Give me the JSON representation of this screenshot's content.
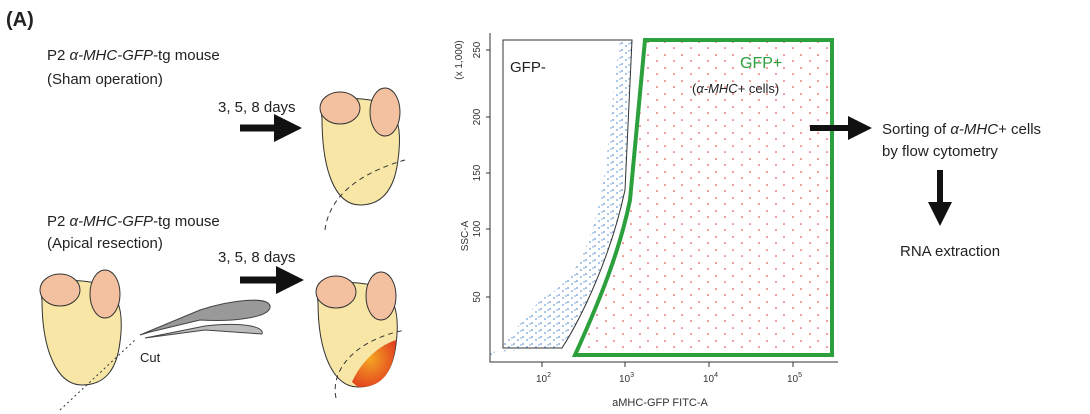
{
  "panel_label": "(A)",
  "sham": {
    "line1": [
      "P2 ",
      "α-MHC-GFP",
      "-tg mouse"
    ],
    "line2": "(Sham operation)",
    "duration": "3, 5, 8 days"
  },
  "resection": {
    "line1": [
      "P2 ",
      "α-MHC-GFP",
      "-tg mouse"
    ],
    "line2": "(Apical resection)",
    "duration": "3, 5, 8 days",
    "cut": "Cut"
  },
  "flow_plot": {
    "y_axis_label": "SSC-A",
    "y_scale_note": "(x 1,000)",
    "y_ticks": [
      "250",
      "200",
      "150",
      "100",
      "50"
    ],
    "x_axis_label": "aMHC-GFP FITC-A",
    "x_ticks": [
      {
        "base": "10",
        "exp": "2"
      },
      {
        "base": "10",
        "exp": "3"
      },
      {
        "base": "10",
        "exp": "4"
      },
      {
        "base": "10",
        "exp": "5"
      }
    ],
    "gate_negative": "GFP-",
    "gate_positive": "GFP+",
    "gate_positive_note": [
      "(",
      "α-MHC",
      "+ cells)"
    ]
  },
  "steps": {
    "sorting": [
      "Sorting of ",
      "α-MHC",
      "+ cells"
    ],
    "sorting_line2": "by flow cytometry",
    "extraction": "RNA extraction"
  }
}
